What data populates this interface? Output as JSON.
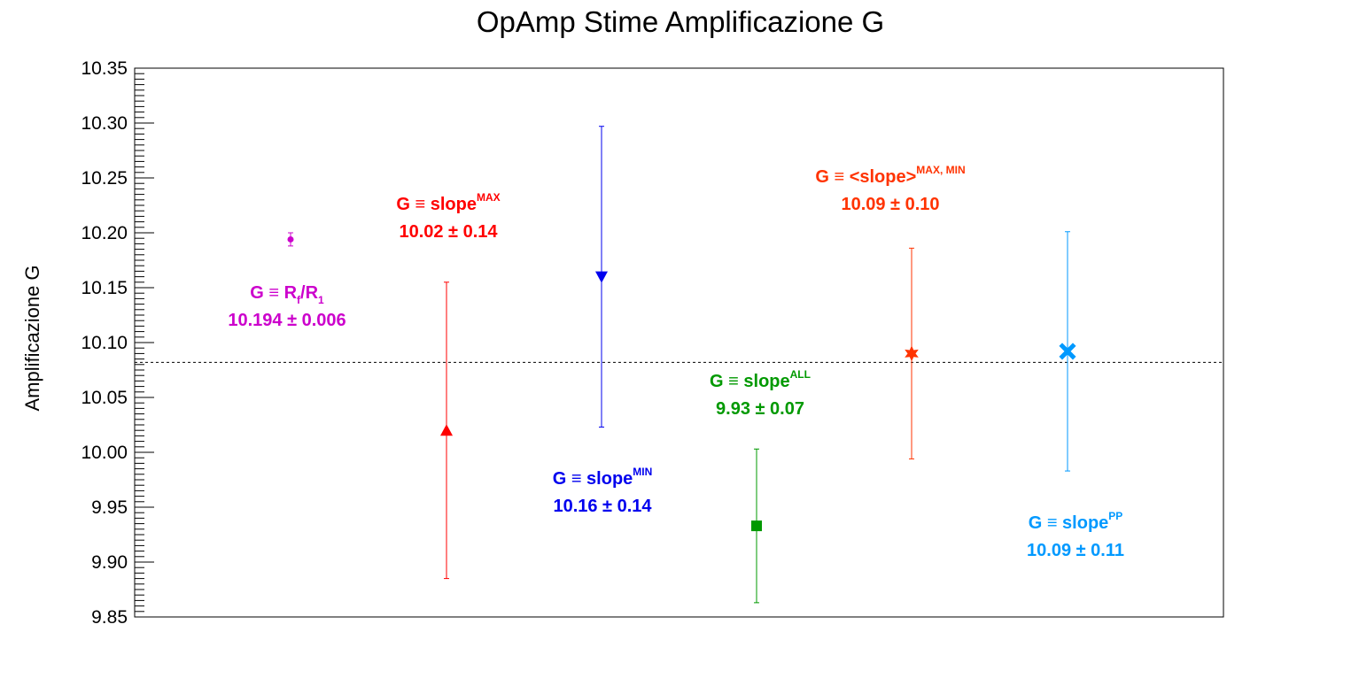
{
  "chart_data": {
    "type": "scatter",
    "title": "OpAmp Stime Amplificazione G",
    "xlabel": "",
    "ylabel": "Amplificazione G",
    "ylim": [
      9.85,
      10.35
    ],
    "yticks": [
      "9.85",
      "9.90",
      "9.95",
      "10.00",
      "10.05",
      "10.10",
      "10.15",
      "10.20",
      "10.25",
      "10.30",
      "10.35"
    ],
    "reference_line": 10.082,
    "grid": false,
    "points": [
      {
        "value": 10.194,
        "error": 0.006,
        "color": "#cc00cc",
        "marker": "circle",
        "label_line1": "G ≡ R",
        "label_sub1": "f",
        "label_mid": "/R",
        "label_sub2": "1",
        "label_line2": "10.194 ± 0.006"
      },
      {
        "value": 10.02,
        "error": 0.135,
        "color": "#ff0000",
        "marker": "triangle-up",
        "label_line1": "G ≡ slope",
        "label_sup": "MAX",
        "label_line2": "10.02 ± 0.14"
      },
      {
        "value": 10.16,
        "error": 0.137,
        "color": "#0000ee",
        "marker": "triangle-down",
        "label_line1": "G ≡ slope",
        "label_sup": "MIN",
        "label_line2": "10.16 ± 0.14"
      },
      {
        "value": 9.933,
        "error": 0.07,
        "color": "#009900",
        "marker": "square",
        "label_line1": "G ≡ slope",
        "label_sup": "ALL",
        "label_line2": "9.93 ± 0.07"
      },
      {
        "value": 10.09,
        "error": 0.096,
        "color": "#ff3300",
        "marker": "star",
        "label_line1": "G ≡ <slope>",
        "label_sup": "MAX, MIN",
        "label_line2": "10.09 ± 0.10"
      },
      {
        "value": 10.092,
        "error": 0.109,
        "color": "#0099ff",
        "marker": "cross",
        "label_line1": "G ≡ slope",
        "label_sup": "PP",
        "label_line2": "10.09 ± 0.11"
      }
    ]
  }
}
